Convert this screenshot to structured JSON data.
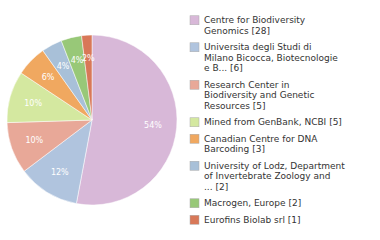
{
  "chart_data": {
    "type": "pie",
    "categories": [
      "Centre for Biodiversity\nGenomics [28]",
      "Universita degli Studi di\nMilano Bicocca, Biotecnologie\ne B... [6]",
      "Research Center in\nBiodiversity and Genetic\nResources [5]",
      "Mined from GenBank, NCBI [5]",
      "Canadian Centre for DNA\nBarcoding [3]",
      "University of Lodz, Department\nof Invertebrate Zoology and\n... [2]",
      "Macrogen, Europe [2]",
      "Eurofins Biolab srl [1]"
    ],
    "values": [
      54,
      12,
      10,
      10,
      6,
      4,
      4,
      2
    ],
    "value_labels": [
      "54%",
      "12%",
      "10%",
      "10%",
      "6%",
      "4%",
      "4%",
      "2%"
    ],
    "colors": [
      "#d8b8d8",
      "#b0c4de",
      "#e8a898",
      "#d4e8a0",
      "#f0a860",
      "#a8c0d8",
      "#98c878",
      "#d87858"
    ],
    "data_labels": true,
    "legend": "right"
  }
}
